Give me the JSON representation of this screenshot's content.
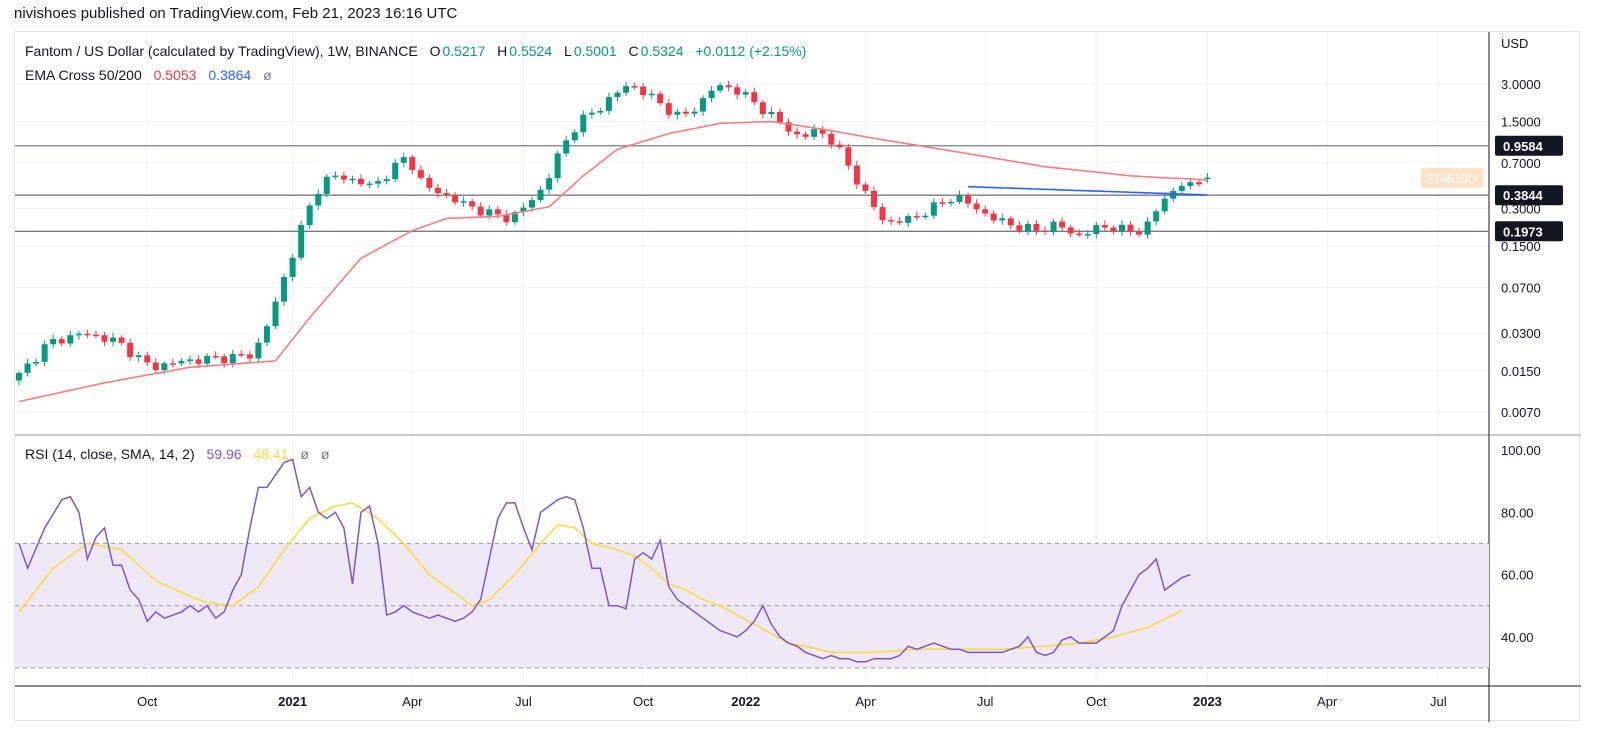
{
  "header": {
    "publisher": "nivishoes published on TradingView.com, Feb 21, 2023 16:16 UTC"
  },
  "colors": {
    "up": "#089981",
    "down": "#f23645",
    "ema50": "#f77c80",
    "ema200": "#2962ff",
    "rsi": "#7e57c2",
    "rsi_ma": "#fdd835",
    "rsi_band": "#ede7f6"
  },
  "legend": {
    "symbol": "Fantom / US Dollar (calculated by TradingView), 1W, BINANCE",
    "o_label": "O",
    "o_value": "0.5217",
    "h_label": "H",
    "h_value": "0.5524",
    "l_label": "L",
    "l_value": "0.5001",
    "c_label": "C",
    "c_value": "0.5324",
    "change": "+0.0112 (+2.15%)",
    "ema_title": "EMA Cross 50/200",
    "ema50_value": "0.5053",
    "ema200_value": "0.3864",
    "ema_icon": "ø",
    "rsi_title": "RSI (14, close, SMA, 14, 2)",
    "rsi_value": "59.96",
    "rsi_ma_value": "48.41",
    "rsi_icon1": "ø",
    "rsi_icon2": "ø"
  },
  "chart_data": {
    "type": "candlestick",
    "symbol": "FTMUSD",
    "currency": "USD",
    "timeframe": "1W",
    "exchange": "BINANCE",
    "price_scale": "log",
    "price_axis_ticks": [
      "3.0000",
      "1.5000",
      "0.7000",
      "0.3000",
      "0.1500",
      "0.0700",
      "0.0300",
      "0.0150",
      "0.0070"
    ],
    "x_axis_labels": [
      "Oct",
      "2021",
      "Apr",
      "Jul",
      "Oct",
      "2022",
      "Apr",
      "Jul",
      "Oct",
      "2023",
      "Apr",
      "Jul"
    ],
    "horizontal_levels": [
      0.9584,
      0.3844,
      0.1973
    ],
    "level_labels": [
      "0.9584",
      "0.3844",
      "0.1973"
    ],
    "symbol_tag": "FTMUSD",
    "last": {
      "open": 0.5217,
      "high": 0.5524,
      "low": 0.5001,
      "close": 0.5324,
      "change": 0.0112,
      "change_pct": 2.15
    },
    "ema50_last": 0.5053,
    "ema200_last": 0.3864,
    "price_path": [
      [
        0,
        0.0125
      ],
      [
        4,
        0.025
      ],
      [
        8,
        0.03
      ],
      [
        12,
        0.026
      ],
      [
        16,
        0.016
      ],
      [
        20,
        0.018
      ],
      [
        24,
        0.019
      ],
      [
        28,
        0.02
      ],
      [
        30,
        0.04
      ],
      [
        32,
        0.1
      ],
      [
        34,
        0.25
      ],
      [
        36,
        0.5
      ],
      [
        38,
        0.55
      ],
      [
        40,
        0.5
      ],
      [
        42,
        0.45
      ],
      [
        44,
        0.6
      ],
      [
        46,
        0.8
      ],
      [
        48,
        0.45
      ],
      [
        50,
        0.4
      ],
      [
        52,
        0.34
      ],
      [
        54,
        0.3
      ],
      [
        56,
        0.27
      ],
      [
        58,
        0.25
      ],
      [
        60,
        0.32
      ],
      [
        62,
        0.45
      ],
      [
        64,
        0.9
      ],
      [
        66,
        1.5
      ],
      [
        68,
        1.8
      ],
      [
        70,
        2.4
      ],
      [
        72,
        3.0
      ],
      [
        74,
        2.5
      ],
      [
        76,
        2.0
      ],
      [
        78,
        1.6
      ],
      [
        80,
        2.0
      ],
      [
        82,
        2.9
      ],
      [
        84,
        2.8
      ],
      [
        86,
        2.3
      ],
      [
        88,
        1.8
      ],
      [
        90,
        1.4
      ],
      [
        92,
        1.1
      ],
      [
        94,
        1.3
      ],
      [
        96,
        1.0
      ],
      [
        98,
        0.6
      ],
      [
        100,
        0.35
      ],
      [
        102,
        0.23
      ],
      [
        104,
        0.24
      ],
      [
        106,
        0.27
      ],
      [
        108,
        0.32
      ],
      [
        110,
        0.38
      ],
      [
        112,
        0.32
      ],
      [
        114,
        0.26
      ],
      [
        116,
        0.23
      ],
      [
        118,
        0.21
      ],
      [
        120,
        0.2
      ],
      [
        122,
        0.23
      ],
      [
        124,
        0.18
      ],
      [
        126,
        0.2
      ],
      [
        128,
        0.22
      ],
      [
        130,
        0.2
      ],
      [
        132,
        0.195
      ],
      [
        134,
        0.32
      ],
      [
        136,
        0.45
      ],
      [
        137,
        0.5
      ],
      [
        138,
        0.42
      ],
      [
        139,
        0.53
      ]
    ],
    "ema50_path": [
      [
        0,
        0.0085
      ],
      [
        10,
        0.012
      ],
      [
        20,
        0.016
      ],
      [
        30,
        0.018
      ],
      [
        34,
        0.04
      ],
      [
        40,
        0.12
      ],
      [
        46,
        0.2
      ],
      [
        50,
        0.25
      ],
      [
        56,
        0.26
      ],
      [
        62,
        0.31
      ],
      [
        66,
        0.55
      ],
      [
        70,
        0.9
      ],
      [
        76,
        1.2
      ],
      [
        82,
        1.45
      ],
      [
        88,
        1.5
      ],
      [
        94,
        1.3
      ],
      [
        100,
        1.1
      ],
      [
        110,
        0.85
      ],
      [
        120,
        0.65
      ],
      [
        130,
        0.55
      ],
      [
        134,
        0.53
      ],
      [
        137,
        0.52
      ],
      [
        139,
        0.5053
      ]
    ],
    "ema200_path": [
      [
        111,
        0.45
      ],
      [
        139,
        0.3864
      ]
    ],
    "rsi": {
      "overbought": 70,
      "middle": 50,
      "oversold": 30,
      "axis_ticks": [
        "100.00",
        "80.00",
        "60.00",
        "40.00"
      ],
      "rsi_path": [
        [
          0,
          70
        ],
        [
          1,
          62
        ],
        [
          3,
          75
        ],
        [
          5,
          84
        ],
        [
          6,
          85
        ],
        [
          7,
          80
        ],
        [
          8,
          65
        ],
        [
          9,
          72
        ],
        [
          10,
          75
        ],
        [
          11,
          63
        ],
        [
          12,
          63
        ],
        [
          13,
          55
        ],
        [
          14,
          52
        ],
        [
          15,
          45
        ],
        [
          16,
          48
        ],
        [
          17,
          46
        ],
        [
          18,
          47
        ],
        [
          19,
          48
        ],
        [
          20,
          50
        ],
        [
          21,
          48
        ],
        [
          22,
          50
        ],
        [
          23,
          46
        ],
        [
          24,
          48
        ],
        [
          25,
          55
        ],
        [
          26,
          60
        ],
        [
          27,
          75
        ],
        [
          28,
          88
        ],
        [
          29,
          88
        ],
        [
          30,
          92
        ],
        [
          31,
          96
        ],
        [
          32,
          97
        ],
        [
          33,
          85
        ],
        [
          34,
          88
        ],
        [
          35,
          80
        ],
        [
          36,
          78
        ],
        [
          37,
          80
        ],
        [
          38,
          75
        ],
        [
          39,
          57
        ],
        [
          40,
          80
        ],
        [
          41,
          82
        ],
        [
          42,
          70
        ],
        [
          43,
          47
        ],
        [
          44,
          48
        ],
        [
          45,
          50
        ],
        [
          46,
          48
        ],
        [
          47,
          47
        ],
        [
          48,
          46
        ],
        [
          49,
          47
        ],
        [
          50,
          46
        ],
        [
          51,
          45
        ],
        [
          52,
          46
        ],
        [
          53,
          48
        ],
        [
          54,
          52
        ],
        [
          55,
          65
        ],
        [
          56,
          78
        ],
        [
          57,
          83
        ],
        [
          58,
          83
        ],
        [
          59,
          75
        ],
        [
          60,
          68
        ],
        [
          61,
          80
        ],
        [
          62,
          82
        ],
        [
          63,
          84
        ],
        [
          64,
          85
        ],
        [
          65,
          84
        ],
        [
          66,
          75
        ],
        [
          67,
          62
        ],
        [
          68,
          62
        ],
        [
          69,
          50
        ],
        [
          70,
          50
        ],
        [
          71,
          49
        ],
        [
          72,
          65
        ],
        [
          73,
          67
        ],
        [
          74,
          65
        ],
        [
          75,
          71
        ],
        [
          76,
          56
        ],
        [
          77,
          52
        ],
        [
          78,
          50
        ],
        [
          79,
          48
        ],
        [
          80,
          46
        ],
        [
          81,
          44
        ],
        [
          82,
          42
        ],
        [
          83,
          41
        ],
        [
          84,
          40
        ],
        [
          85,
          42
        ],
        [
          86,
          45
        ],
        [
          87,
          50
        ],
        [
          88,
          44
        ],
        [
          89,
          40
        ],
        [
          90,
          38
        ],
        [
          91,
          37
        ],
        [
          92,
          35
        ],
        [
          93,
          34
        ],
        [
          94,
          33
        ],
        [
          95,
          34
        ],
        [
          96,
          33
        ],
        [
          97,
          33
        ],
        [
          98,
          32
        ],
        [
          99,
          32
        ],
        [
          100,
          33
        ],
        [
          101,
          33
        ],
        [
          102,
          33
        ],
        [
          103,
          34
        ],
        [
          104,
          37
        ],
        [
          105,
          36
        ],
        [
          106,
          37
        ],
        [
          107,
          38
        ],
        [
          108,
          37
        ],
        [
          109,
          36
        ],
        [
          110,
          36
        ],
        [
          111,
          35
        ],
        [
          112,
          35
        ],
        [
          113,
          35
        ],
        [
          114,
          35
        ],
        [
          115,
          35
        ],
        [
          116,
          36
        ],
        [
          117,
          37
        ],
        [
          118,
          40
        ],
        [
          119,
          35
        ],
        [
          120,
          34
        ],
        [
          121,
          35
        ],
        [
          122,
          39
        ],
        [
          123,
          40
        ],
        [
          124,
          38
        ],
        [
          125,
          38
        ],
        [
          126,
          38
        ],
        [
          127,
          40
        ],
        [
          128,
          42
        ],
        [
          129,
          50
        ],
        [
          130,
          55
        ],
        [
          131,
          60
        ],
        [
          132,
          62
        ],
        [
          133,
          65
        ],
        [
          134,
          55
        ],
        [
          135,
          57
        ],
        [
          136,
          59
        ],
        [
          137,
          59.96
        ]
      ],
      "rsi_ma_path": [
        [
          0,
          48
        ],
        [
          4,
          62
        ],
        [
          8,
          70
        ],
        [
          12,
          68
        ],
        [
          16,
          58
        ],
        [
          20,
          53
        ],
        [
          22,
          51
        ],
        [
          25,
          50
        ],
        [
          28,
          56
        ],
        [
          31,
          68
        ],
        [
          34,
          78
        ],
        [
          37,
          82
        ],
        [
          39,
          83
        ],
        [
          42,
          78
        ],
        [
          45,
          70
        ],
        [
          48,
          60
        ],
        [
          51,
          54
        ],
        [
          53,
          50
        ],
        [
          55,
          52
        ],
        [
          58,
          60
        ],
        [
          61,
          70
        ],
        [
          63,
          76
        ],
        [
          65,
          75
        ],
        [
          67,
          70
        ],
        [
          70,
          68
        ],
        [
          72,
          66
        ],
        [
          74,
          62
        ],
        [
          76,
          57
        ],
        [
          78,
          55
        ],
        [
          80,
          52
        ],
        [
          82,
          50
        ],
        [
          84,
          47
        ],
        [
          86,
          44
        ],
        [
          88,
          41
        ],
        [
          90,
          38
        ],
        [
          92,
          37
        ],
        [
          95,
          35
        ],
        [
          100,
          35
        ],
        [
          105,
          36
        ],
        [
          110,
          36
        ],
        [
          115,
          36
        ],
        [
          120,
          37
        ],
        [
          124,
          38
        ],
        [
          128,
          40
        ],
        [
          132,
          43
        ],
        [
          136,
          48.41
        ]
      ]
    }
  }
}
